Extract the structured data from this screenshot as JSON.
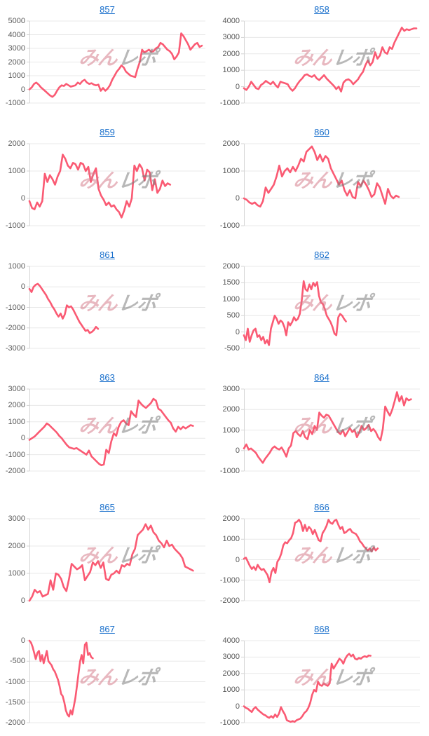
{
  "watermark": {
    "part1": "みん",
    "part2": "レポ",
    "pink": "#d57d8c",
    "gray": "#7d7d7d"
  },
  "colors": {
    "line": "#fa5a73",
    "grid": "#e8e8e8",
    "axis": "#d4d4d4",
    "tick_label": "#595959",
    "link": "#1a70cc"
  },
  "chart_data": [
    {
      "type": "line",
      "title": "857",
      "xlabel": "",
      "ylabel": "",
      "grid": true,
      "ylim": [
        -1000,
        5000
      ],
      "y_ticks": [
        5000,
        4000,
        3000,
        2000,
        1000,
        0,
        -1000
      ],
      "span": 0.98,
      "values": [
        0,
        150,
        400,
        500,
        350,
        150,
        0,
        -150,
        -300,
        -450,
        -550,
        -400,
        -100,
        150,
        300,
        250,
        400,
        300,
        200,
        250,
        300,
        500,
        400,
        600,
        700,
        500,
        400,
        450,
        350,
        300,
        350,
        -100,
        100,
        -100,
        50,
        300,
        700,
        1000,
        1300,
        1500,
        1750,
        1600,
        1300,
        1150,
        1000,
        950,
        900,
        1500,
        2000,
        2900,
        2700,
        2800,
        2900,
        2750,
        2800,
        3000,
        3100,
        3400,
        3300,
        3100,
        2900,
        2800,
        2600,
        2200,
        2400,
        2700,
        4100,
        3900,
        3600,
        3300,
        2900,
        3100,
        3300,
        3400,
        3100,
        3200
      ]
    },
    {
      "type": "line",
      "title": "858",
      "xlabel": "",
      "ylabel": "",
      "grid": true,
      "ylim": [
        -1000,
        4000
      ],
      "y_ticks": [
        4000,
        3000,
        2000,
        1000,
        0,
        -1000
      ],
      "span": 0.98,
      "values": [
        -100,
        -200,
        0,
        300,
        100,
        -100,
        -150,
        100,
        200,
        350,
        250,
        150,
        300,
        100,
        -50,
        300,
        250,
        200,
        150,
        -100,
        -250,
        -100,
        150,
        350,
        500,
        700,
        750,
        650,
        600,
        700,
        500,
        400,
        550,
        700,
        500,
        350,
        200,
        50,
        -150,
        0,
        -300,
        250,
        400,
        450,
        350,
        150,
        300,
        450,
        700,
        900,
        1300,
        1600,
        1300,
        1500,
        2100,
        1700,
        1900,
        2400,
        2100,
        2000,
        2400,
        2300,
        2700,
        3000,
        3300,
        3600,
        3400,
        3500,
        3450,
        3500,
        3550,
        3550
      ]
    },
    {
      "type": "line",
      "title": "859",
      "xlabel": "",
      "ylabel": "",
      "grid": true,
      "ylim": [
        -1000,
        2000
      ],
      "y_ticks": [
        2000,
        1000,
        0,
        -1000
      ],
      "span": 0.8,
      "values": [
        -100,
        -350,
        -400,
        -150,
        -300,
        -100,
        900,
        600,
        850,
        700,
        500,
        800,
        1000,
        1600,
        1450,
        1200,
        1100,
        1300,
        1250,
        1050,
        1300,
        1250,
        1000,
        1150,
        600,
        900,
        1100,
        350,
        100,
        -50,
        -250,
        -150,
        -300,
        -250,
        -400,
        -500,
        -700,
        -450,
        -100,
        -300,
        0,
        1200,
        1000,
        1250,
        1100,
        650,
        1050,
        950,
        300,
        700,
        200,
        350,
        650,
        450,
        550,
        500
      ]
    },
    {
      "type": "line",
      "title": "860",
      "xlabel": "",
      "ylabel": "",
      "grid": true,
      "ylim": [
        -1000,
        2000
      ],
      "y_ticks": [
        2000,
        1000,
        0,
        -1000
      ],
      "span": 0.88,
      "values": [
        0,
        -50,
        -150,
        -200,
        -150,
        -250,
        -300,
        -100,
        400,
        200,
        350,
        500,
        800,
        1200,
        800,
        1000,
        1100,
        950,
        1150,
        1000,
        1200,
        1450,
        1350,
        1700,
        1800,
        1900,
        1700,
        1400,
        1600,
        1350,
        1550,
        1450,
        1100,
        900,
        700,
        500,
        650,
        300,
        100,
        300,
        50,
        0,
        600,
        450,
        650,
        500,
        300,
        50,
        150,
        550,
        400,
        100,
        -200,
        350,
        100,
        0,
        100,
        50
      ]
    },
    {
      "type": "line",
      "title": "861",
      "xlabel": "",
      "ylabel": "",
      "grid": true,
      "ylim": [
        -3000,
        1000
      ],
      "y_ticks": [
        1000,
        0,
        -1000,
        -2000,
        -3000
      ],
      "span": 0.39,
      "values": [
        -100,
        -250,
        0,
        100,
        150,
        50,
        -100,
        -250,
        -400,
        -600,
        -750,
        -950,
        -1100,
        -1300,
        -1450,
        -1300,
        -1550,
        -1350,
        -900,
        -1000,
        -950,
        -1100,
        -1300,
        -1500,
        -1700,
        -1850,
        -2000,
        -2150,
        -2100,
        -2250,
        -2200,
        -2100,
        -1950,
        -2050
      ]
    },
    {
      "type": "line",
      "title": "862",
      "xlabel": "",
      "ylabel": "",
      "grid": true,
      "ylim": [
        -500,
        2000
      ],
      "y_ticks": [
        2000,
        1500,
        1000,
        500,
        0,
        -500
      ],
      "span": 0.58,
      "values": [
        -100,
        -250,
        100,
        -300,
        -100,
        50,
        100,
        -150,
        -100,
        -250,
        -150,
        -350,
        -250,
        -400,
        100,
        300,
        500,
        400,
        250,
        350,
        300,
        150,
        -100,
        300,
        200,
        300,
        450,
        350,
        400,
        550,
        950,
        1550,
        1300,
        1250,
        1450,
        1300,
        1500,
        1400,
        1520,
        1100,
        900,
        850,
        700,
        500,
        400,
        300,
        150,
        -50,
        -100,
        450,
        550,
        500,
        400,
        320
      ]
    },
    {
      "type": "line",
      "title": "863",
      "xlabel": "",
      "ylabel": "",
      "grid": true,
      "ylim": [
        -2000,
        3000
      ],
      "y_ticks": [
        3000,
        2000,
        1000,
        0,
        -1000,
        -2000
      ],
      "span": 0.93,
      "values": [
        -100,
        0,
        100,
        250,
        400,
        550,
        700,
        900,
        800,
        650,
        500,
        350,
        150,
        0,
        -200,
        -400,
        -550,
        -600,
        -650,
        -600,
        -700,
        -800,
        -900,
        -1000,
        -750,
        -1100,
        -1250,
        -1400,
        -1550,
        -1650,
        -1600,
        -700,
        -900,
        -200,
        300,
        150,
        700,
        1000,
        1100,
        900,
        800,
        1650,
        1450,
        1300,
        2300,
        2100,
        1950,
        1850,
        2000,
        2150,
        2400,
        2300,
        1800,
        1700,
        1500,
        1300,
        1100,
        950,
        600,
        400,
        700,
        550,
        700,
        600,
        700,
        800,
        750
      ]
    },
    {
      "type": "line",
      "title": "864",
      "xlabel": "",
      "ylabel": "",
      "grid": true,
      "ylim": [
        -1000,
        3000
      ],
      "y_ticks": [
        3000,
        2000,
        1000,
        0,
        -1000
      ],
      "span": 0.95,
      "values": [
        100,
        300,
        50,
        100,
        0,
        -100,
        -300,
        -450,
        -600,
        -400,
        -250,
        -100,
        100,
        200,
        100,
        50,
        150,
        -50,
        -300,
        100,
        250,
        850,
        950,
        800,
        700,
        950,
        650,
        550,
        1000,
        800,
        1200,
        1000,
        1850,
        1700,
        1600,
        1750,
        1700,
        1500,
        1300,
        1100,
        900,
        800,
        1000,
        700,
        900,
        1100,
        900,
        1000,
        650,
        900,
        1200,
        1000,
        1100,
        1250,
        950,
        1050,
        900,
        650,
        500,
        1050,
        2150,
        1900,
        1700,
        2000,
        2400,
        2850,
        2400,
        2650,
        2200,
        2550,
        2450,
        2500
      ]
    },
    {
      "type": "line",
      "title": "865",
      "xlabel": "",
      "ylabel": "",
      "grid": true,
      "ylim": [
        0,
        3000
      ],
      "y_ticks": [
        3000,
        2000,
        1000,
        0
      ],
      "span": 0.93,
      "values": [
        0,
        150,
        400,
        300,
        350,
        150,
        200,
        250,
        750,
        400,
        1000,
        950,
        800,
        500,
        350,
        800,
        1350,
        1250,
        1150,
        1200,
        1300,
        750,
        900,
        1050,
        1400,
        1300,
        1450,
        1200,
        1400,
        800,
        750,
        950,
        1000,
        1100,
        1000,
        1300,
        1250,
        1350,
        1300,
        1700,
        1900,
        2400,
        2500,
        2600,
        2800,
        2600,
        2750,
        2500,
        2400,
        2200,
        2100,
        1950,
        2200,
        2000,
        2050,
        1900,
        1800,
        1700,
        1550,
        1250,
        1200,
        1150,
        1100
      ]
    },
    {
      "type": "line",
      "title": "866",
      "xlabel": "",
      "ylabel": "",
      "grid": true,
      "ylim": [
        -2000,
        2000
      ],
      "y_ticks": [
        2000,
        1000,
        0,
        -1000,
        -2000
      ],
      "span": 0.76,
      "values": [
        50,
        100,
        -100,
        -300,
        -450,
        -350,
        -500,
        -250,
        -400,
        -500,
        -450,
        -600,
        -750,
        -1100,
        -600,
        -400,
        -650,
        -100,
        50,
        300,
        700,
        850,
        800,
        950,
        1050,
        1300,
        1800,
        1850,
        1950,
        1800,
        1400,
        1700,
        1400,
        1600,
        1500,
        1250,
        1450,
        1200,
        950,
        900,
        1300,
        1450,
        1650,
        1950,
        1800,
        1750,
        1900,
        1950,
        1700,
        1500,
        1600,
        1300,
        1350,
        1450,
        1500,
        1350,
        1300,
        1250,
        1100,
        900,
        800,
        650,
        550,
        450,
        550,
        400,
        600,
        450,
        550
      ]
    },
    {
      "type": "line",
      "title": "867",
      "xlabel": "",
      "ylabel": "",
      "grid": true,
      "ylim": [
        -2000,
        0
      ],
      "y_ticks": [
        0,
        -500,
        -1000,
        -1500,
        -2000
      ],
      "span": 0.36,
      "values": [
        0,
        -50,
        -150,
        -300,
        -450,
        -300,
        -250,
        -500,
        -350,
        -550,
        -400,
        -250,
        -500,
        -550,
        -600,
        -700,
        -750,
        -850,
        -950,
        -1100,
        -1300,
        -1350,
        -1500,
        -1700,
        -1800,
        -1850,
        -1700,
        -1800,
        -1600,
        -1400,
        -1100,
        -800,
        -500,
        -350,
        -550,
        -100,
        -50,
        -350,
        -300,
        -400,
        -430
      ]
    },
    {
      "type": "line",
      "title": "868",
      "xlabel": "",
      "ylabel": "",
      "grid": true,
      "ylim": [
        -1000,
        4000
      ],
      "y_ticks": [
        4000,
        3000,
        2000,
        1000,
        0,
        -1000
      ],
      "span": 0.72,
      "values": [
        0,
        -100,
        -150,
        -250,
        -350,
        -150,
        -50,
        -200,
        -300,
        -400,
        -500,
        -550,
        -650,
        -700,
        -600,
        -700,
        -500,
        -650,
        -450,
        -50,
        -300,
        -500,
        -850,
        -900,
        -950,
        -900,
        -950,
        -850,
        -800,
        -750,
        -600,
        -400,
        -300,
        -100,
        200,
        700,
        1000,
        900,
        1500,
        1300,
        1250,
        1400,
        1300,
        1250,
        1400,
        2600,
        2300,
        2500,
        2700,
        2900,
        2800,
        2600,
        2900,
        3100,
        3200,
        3050,
        3150,
        2900,
        2850,
        2950,
        2900,
        3000,
        3050,
        3000,
        3100,
        3080
      ]
    }
  ]
}
